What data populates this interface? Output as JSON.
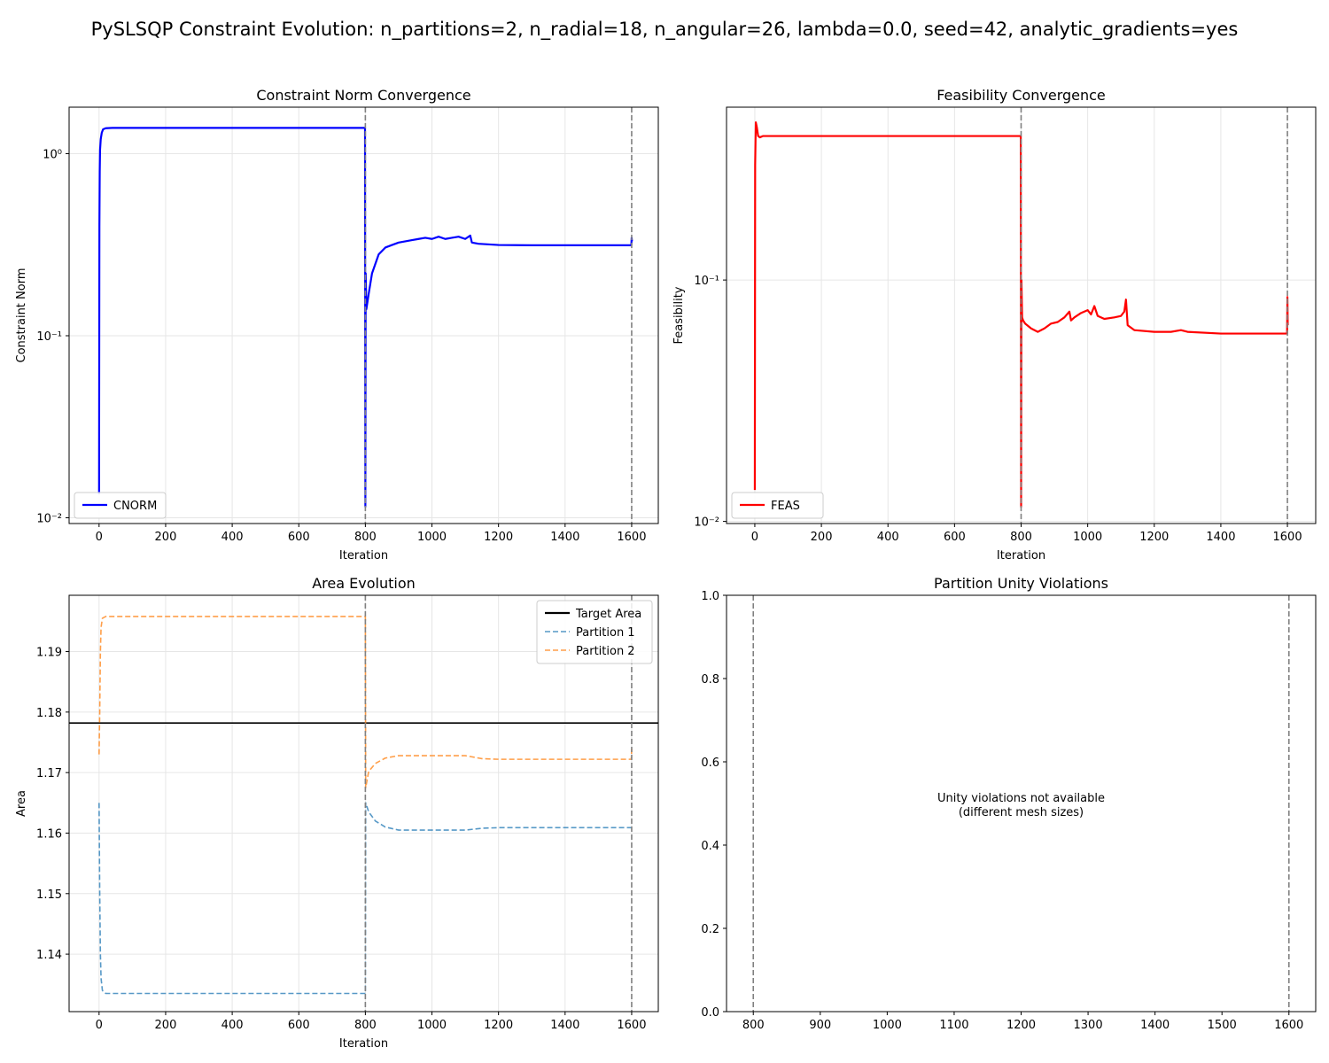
{
  "suptitle": "PySLSQP Constraint Evolution: n_partitions=2, n_radial=18, n_angular=26, lambda=0.0, seed=42, analytic_gradients=yes",
  "colors": {
    "cnorm": "#0000ff",
    "feas": "#ff0000",
    "partition1": "#1f77b4",
    "partition2": "#ff7f0e",
    "target": "#000000",
    "vline": "#808080",
    "grid": "#e6e6e6"
  },
  "chart_data": [
    {
      "id": "cnorm",
      "type": "line",
      "title": "Constraint Norm Convergence",
      "xlabel": "Iteration",
      "ylabel": "Constraint Norm",
      "yscale": "log",
      "xlim": [
        -90,
        1680
      ],
      "ylim": [
        0.0093,
        1.8
      ],
      "xticks": [
        0,
        200,
        400,
        600,
        800,
        1000,
        1200,
        1400,
        1600
      ],
      "xtick_labels": [
        "0",
        "200",
        "400",
        "600",
        "800",
        "1000",
        "1200",
        "1400",
        "1600"
      ],
      "yticks": [
        0.01,
        0.1,
        1
      ],
      "ytick_labels": [
        "10⁻²",
        "10⁻¹",
        "10⁰"
      ],
      "grid": true,
      "legend_position": "lower left",
      "vlines": [
        800,
        1600
      ],
      "series": [
        {
          "name": "CNORM",
          "color": "#0000ff",
          "style": "solid",
          "x": [
            0,
            1,
            2,
            3,
            5,
            8,
            12,
            20,
            40,
            100,
            400,
            799,
            800,
            801,
            803,
            810,
            820,
            840,
            860,
            880,
            900,
            920,
            940,
            960,
            980,
            1000,
            1020,
            1040,
            1060,
            1080,
            1100,
            1115,
            1120,
            1140,
            1200,
            1300,
            1400,
            1500,
            1599,
            1600,
            1601
          ],
          "y": [
            0.0135,
            0.4,
            0.8,
            1.05,
            1.2,
            1.3,
            1.36,
            1.38,
            1.385,
            1.385,
            1.385,
            1.385,
            0.0115,
            0.22,
            0.14,
            0.17,
            0.22,
            0.28,
            0.305,
            0.315,
            0.325,
            0.33,
            0.335,
            0.34,
            0.345,
            0.34,
            0.35,
            0.34,
            0.345,
            0.35,
            0.34,
            0.355,
            0.325,
            0.32,
            0.315,
            0.314,
            0.314,
            0.314,
            0.314,
            0.345,
            0.33
          ]
        }
      ]
    },
    {
      "id": "feas",
      "type": "line",
      "title": "Feasibility Convergence",
      "xlabel": "Iteration",
      "ylabel": "Feasibility",
      "yscale": "log",
      "xlim": [
        -85,
        1685
      ],
      "ylim": [
        0.0098,
        0.52
      ],
      "xticks": [
        0,
        200,
        400,
        600,
        800,
        1000,
        1200,
        1400,
        1600
      ],
      "xtick_labels": [
        "0",
        "200",
        "400",
        "600",
        "800",
        "1000",
        "1200",
        "1400",
        "1600"
      ],
      "yticks": [
        0.01,
        0.1
      ],
      "ytick_labels": [
        "10⁻²",
        "10⁻¹"
      ],
      "grid": true,
      "legend_position": "lower left",
      "vlines": [
        800,
        1600
      ],
      "series": [
        {
          "name": "FEAS",
          "color": "#ff0000",
          "style": "solid",
          "x": [
            0,
            1,
            3,
            6,
            10,
            15,
            25,
            100,
            400,
            799,
            800,
            801,
            803,
            806,
            812,
            830,
            850,
            870,
            890,
            910,
            930,
            945,
            950,
            960,
            980,
            1000,
            1010,
            1020,
            1030,
            1050,
            1080,
            1100,
            1110,
            1115,
            1120,
            1140,
            1200,
            1250,
            1280,
            1300,
            1400,
            1500,
            1599,
            1600,
            1601
          ],
          "y": [
            0.0135,
            0.3,
            0.45,
            0.43,
            0.395,
            0.39,
            0.395,
            0.395,
            0.395,
            0.395,
            0.0115,
            0.1,
            0.07,
            0.068,
            0.066,
            0.063,
            0.061,
            0.063,
            0.066,
            0.067,
            0.07,
            0.074,
            0.068,
            0.07,
            0.073,
            0.075,
            0.072,
            0.078,
            0.071,
            0.069,
            0.07,
            0.071,
            0.074,
            0.083,
            0.065,
            0.062,
            0.061,
            0.061,
            0.062,
            0.061,
            0.06,
            0.06,
            0.06,
            0.085,
            0.065
          ]
        }
      ]
    },
    {
      "id": "area",
      "type": "line",
      "title": "Area Evolution",
      "xlabel": "Iteration",
      "ylabel": "Area",
      "yscale": "linear",
      "xlim": [
        -90,
        1680
      ],
      "ylim": [
        1.1305,
        1.1993
      ],
      "xticks": [
        0,
        200,
        400,
        600,
        800,
        1000,
        1200,
        1400,
        1600
      ],
      "xtick_labels": [
        "0",
        "200",
        "400",
        "600",
        "800",
        "1000",
        "1200",
        "1400",
        "1600"
      ],
      "yticks": [
        1.14,
        1.15,
        1.16,
        1.17,
        1.18,
        1.19
      ],
      "ytick_labels": [
        "1.14",
        "1.15",
        "1.16",
        "1.17",
        "1.18",
        "1.19"
      ],
      "grid": true,
      "legend_position": "upper right",
      "vlines": [
        800,
        1600
      ],
      "hline": {
        "name": "Target Area",
        "value": 1.1782,
        "color": "#000000"
      },
      "series": [
        {
          "name": "Partition 1",
          "color": "#1f77b4",
          "style": "dashed",
          "x": [
            0,
            2,
            4,
            6,
            10,
            20,
            40,
            400,
            799,
            800,
            801,
            810,
            830,
            860,
            900,
            1000,
            1100,
            1150,
            1200,
            1400,
            1599,
            1600
          ],
          "y": [
            1.165,
            1.15,
            1.14,
            1.136,
            1.134,
            1.1335,
            1.1335,
            1.1335,
            1.1335,
            1.1335,
            1.165,
            1.1635,
            1.162,
            1.161,
            1.1605,
            1.1605,
            1.1605,
            1.1608,
            1.1609,
            1.1609,
            1.1609,
            1.1609
          ]
        },
        {
          "name": "Partition 2",
          "color": "#ff7f0e",
          "style": "dashed",
          "x": [
            0,
            2,
            4,
            6,
            10,
            20,
            40,
            400,
            799,
            800,
            801,
            810,
            830,
            860,
            900,
            1000,
            1100,
            1150,
            1200,
            1400,
            1599,
            1600
          ],
          "y": [
            1.173,
            1.18,
            1.19,
            1.194,
            1.1955,
            1.1958,
            1.1958,
            1.1958,
            1.1958,
            1.1958,
            1.1675,
            1.1702,
            1.1715,
            1.1724,
            1.1728,
            1.1728,
            1.1728,
            1.1723,
            1.1722,
            1.1722,
            1.1722,
            1.174
          ]
        }
      ]
    },
    {
      "id": "unity",
      "type": "line",
      "title": "Partition Unity Violations",
      "xlabel": "",
      "ylabel": "",
      "yscale": "linear",
      "xlim": [
        760,
        1640
      ],
      "ylim": [
        0,
        1
      ],
      "xticks": [
        800,
        900,
        1000,
        1100,
        1200,
        1300,
        1400,
        1500,
        1600
      ],
      "xtick_labels": [
        "800",
        "900",
        "1000",
        "1100",
        "1200",
        "1300",
        "1400",
        "1500",
        "1600"
      ],
      "yticks": [
        0,
        0.2,
        0.4,
        0.6,
        0.8,
        1.0
      ],
      "ytick_labels": [
        "0.0",
        "0.2",
        "0.4",
        "0.6",
        "0.8",
        "1.0"
      ],
      "grid": false,
      "vlines": [
        800,
        1600
      ],
      "annotation": {
        "line1": "Unity violations not available",
        "line2": "(different mesh sizes)"
      },
      "series": []
    }
  ]
}
